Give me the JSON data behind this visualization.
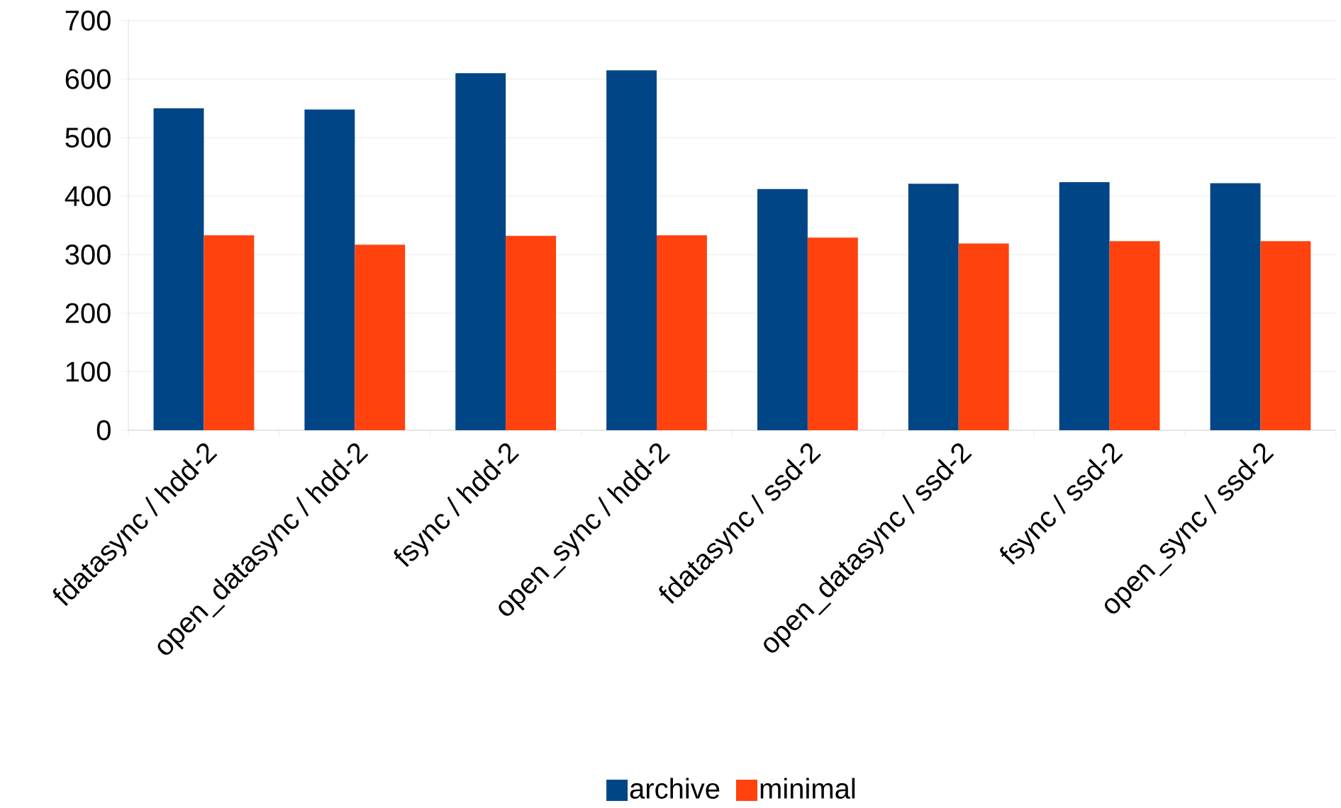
{
  "chart_data": {
    "type": "bar",
    "categories": [
      "fdatasync / hdd-2",
      "open_datasync / hdd-2",
      "fsync / hdd-2",
      "open_sync / hdd-2",
      "fdatasync / ssd-2",
      "open_datasync / ssd-2",
      "fsync / ssd-2",
      "open_sync / ssd-2"
    ],
    "series": [
      {
        "name": "archive",
        "color": "#004586",
        "values": [
          550,
          548,
          610,
          615,
          412,
          421,
          424,
          422
        ]
      },
      {
        "name": "minimal",
        "color": "#ff420e",
        "values": [
          333,
          317,
          332,
          333,
          329,
          319,
          323,
          323
        ]
      }
    ],
    "ylim": [
      0,
      700
    ],
    "yticks": [
      0,
      100,
      200,
      300,
      400,
      500,
      600,
      700
    ],
    "grid": "y",
    "legend": "bottom"
  }
}
